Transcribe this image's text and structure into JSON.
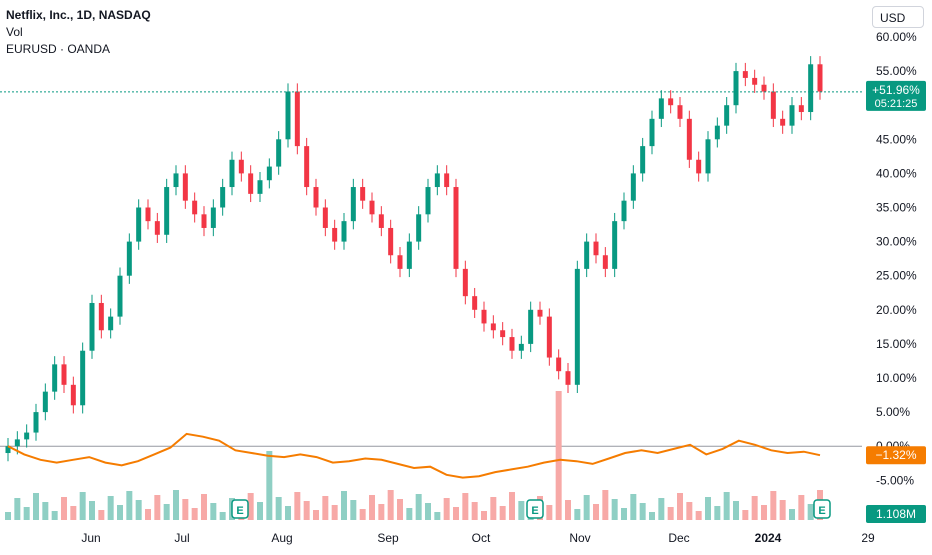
{
  "legend": {
    "symbol_title": "Netflix, Inc., 1D, NASDAQ",
    "volume_label": "Vol",
    "compare_label": "EURUSD · OANDA"
  },
  "price_axis": {
    "currency": "USD",
    "ticks": [
      "60.00%",
      "55.00%",
      "50.00%",
      "45.00%",
      "40.00%",
      "35.00%",
      "30.00%",
      "25.00%",
      "20.00%",
      "15.00%",
      "10.00%",
      "5.00%",
      "0.00%",
      "-5.00%"
    ]
  },
  "time_axis": {
    "labels": [
      "Jun",
      "Jul",
      "Aug",
      "Sep",
      "Oct",
      "Nov",
      "Dec",
      "2024",
      "29"
    ]
  },
  "price_tag": {
    "value": "+51.96%",
    "countdown": "05:21:25",
    "color": "#089981"
  },
  "compare_tag": {
    "value": "−1.32%",
    "color": "#f57c00"
  },
  "volume_tag": {
    "value": "1.108M",
    "color": "#089981"
  },
  "earnings_markers": [
    "E",
    "E",
    "E"
  ],
  "colors": {
    "up": "#089981",
    "down": "#f23645",
    "vol_up": "#8fcfc4",
    "vol_down": "#f7a9a7",
    "compare": "#f57c00"
  },
  "chart_data": {
    "type": "candlestick",
    "series": [
      {
        "name": "Netflix, Inc., 1D, NASDAQ",
        "unit": "percent",
        "points": [
          0,
          1,
          2,
          5,
          8,
          12,
          9,
          6,
          14,
          21,
          17,
          19,
          25,
          30,
          35,
          33,
          31,
          38,
          40,
          36,
          34,
          32,
          35,
          38,
          42,
          40,
          37,
          39,
          41,
          45,
          52,
          44,
          38,
          35,
          32,
          30,
          33,
          38,
          36,
          34,
          32,
          28,
          26,
          30,
          34,
          38,
          40,
          38,
          26,
          22,
          20,
          18,
          17,
          16,
          14,
          15,
          20,
          19,
          13,
          11,
          9,
          26,
          30,
          28,
          26,
          33,
          36,
          40,
          44,
          48,
          51,
          50,
          48,
          42,
          40,
          45,
          47,
          50,
          55,
          54,
          53,
          52,
          48,
          47,
          50,
          49,
          56,
          52
        ]
      },
      {
        "name": "Vol",
        "unit": "volume",
        "last": "1.108M"
      },
      {
        "name": "EURUSD · OANDA",
        "unit": "percent",
        "points": [
          0,
          -1.2,
          -2.0,
          -2.4,
          -2.0,
          -1.6,
          -2.4,
          -2.8,
          -2.2,
          -1.2,
          -0.2,
          1.8,
          1.4,
          0.8,
          -0.6,
          -1.0,
          -1.4,
          -1.6,
          -1.2,
          -1.6,
          -2.4,
          -2.2,
          -1.8,
          -2.0,
          -2.6,
          -3.2,
          -3.0,
          -4.2,
          -4.6,
          -4.4,
          -3.8,
          -3.4,
          -3.0,
          -2.4,
          -2.0,
          -2.2,
          -2.6,
          -1.8,
          -1.0,
          -0.6,
          -1.0,
          -0.4,
          0.2,
          -1.2,
          -0.4,
          0.8,
          0.2,
          -0.6,
          -1.0,
          -0.8,
          -1.32
        ],
        "last": "−1.32%"
      }
    ],
    "y_ticks_percent": [
      60,
      55,
      50,
      45,
      40,
      35,
      30,
      25,
      20,
      15,
      10,
      5,
      0,
      -5
    ],
    "x_labels": [
      "Jun",
      "Jul",
      "Aug",
      "Sep",
      "Oct",
      "Nov",
      "Dec",
      "2024",
      "29"
    ],
    "last_value_percent": 51.96
  }
}
